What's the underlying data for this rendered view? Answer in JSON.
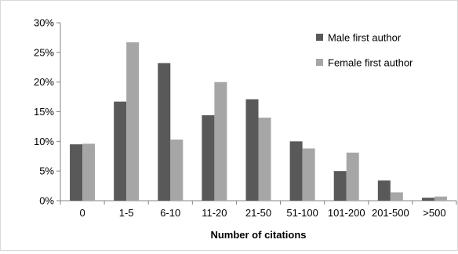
{
  "chart_data": {
    "type": "bar",
    "title": "",
    "xlabel": "Number of citations",
    "ylabel": "",
    "categories": [
      "0",
      "1-5",
      "6-10",
      "11-20",
      "21-50",
      "51-100",
      "101-200",
      "201-500",
      ">500"
    ],
    "series": [
      {
        "name": "Male first author",
        "color": "#595959",
        "values": [
          9.5,
          16.7,
          23.2,
          14.4,
          17.1,
          10.0,
          5.0,
          3.4,
          0.5
        ]
      },
      {
        "name": "Female first author",
        "color": "#a6a6a6",
        "values": [
          9.6,
          26.7,
          10.3,
          20.0,
          14.0,
          8.8,
          8.1,
          1.4,
          0.7
        ]
      }
    ],
    "y_ticks": [
      "0%",
      "5%",
      "10%",
      "15%",
      "20%",
      "25%",
      "30%"
    ],
    "ylim": [
      0,
      30
    ],
    "grid": false,
    "legend_position": "top-right"
  }
}
